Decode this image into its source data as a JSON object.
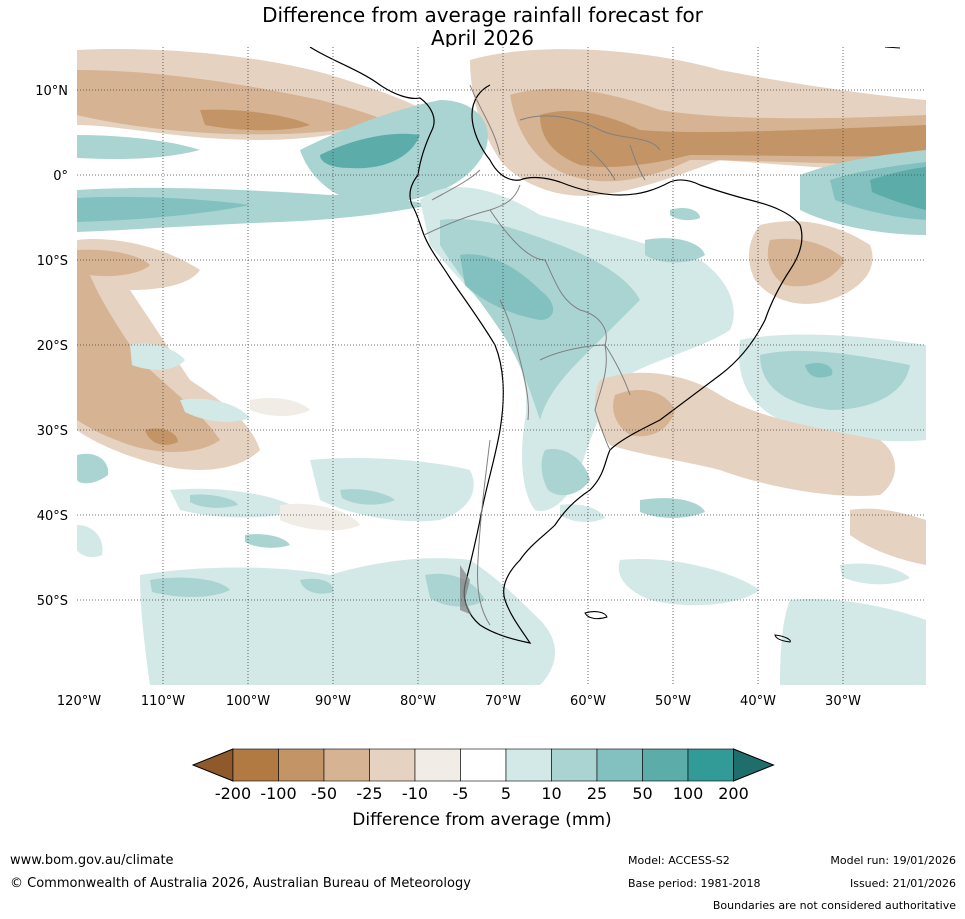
{
  "title": {
    "line1": "Difference from average rainfall forecast for",
    "line2": "April 2026"
  },
  "map": {
    "region": "South America",
    "lat_labels": [
      "10°N",
      "0°",
      "10°S",
      "20°S",
      "30°S",
      "40°S",
      "50°S"
    ],
    "lon_labels": [
      "120°W",
      "110°W",
      "100°W",
      "90°W",
      "80°W",
      "70°W",
      "60°W",
      "50°W",
      "40°W",
      "30°W"
    ]
  },
  "colorbar": {
    "title": "Difference from average (mm)",
    "tick_labels": [
      "-200",
      "-100",
      "-50",
      "-25",
      "-10",
      "-5",
      "5",
      "10",
      "25",
      "50",
      "100",
      "200"
    ],
    "colors": [
      "#8e5a2b",
      "#b07a42",
      "#c39566",
      "#d6b392",
      "#e6d2c0",
      "#f1ece6",
      "#ffffff",
      "#d3e9e7",
      "#a9d4d2",
      "#82c1bf",
      "#5cacaa",
      "#329a97",
      "#1e6e6c"
    ]
  },
  "footer": {
    "website": "www.bom.gov.au/climate",
    "copyright": "© Commonwealth of Australia 2026, Australian Bureau of Meteorology",
    "model": "Model: ACCESS-S2",
    "base_period": "Base period: 1981-2018",
    "model_run": "Model run: 19/01/2026",
    "issued": "Issued: 21/01/2026",
    "disclaimer": "Boundaries are not considered authoritative"
  }
}
